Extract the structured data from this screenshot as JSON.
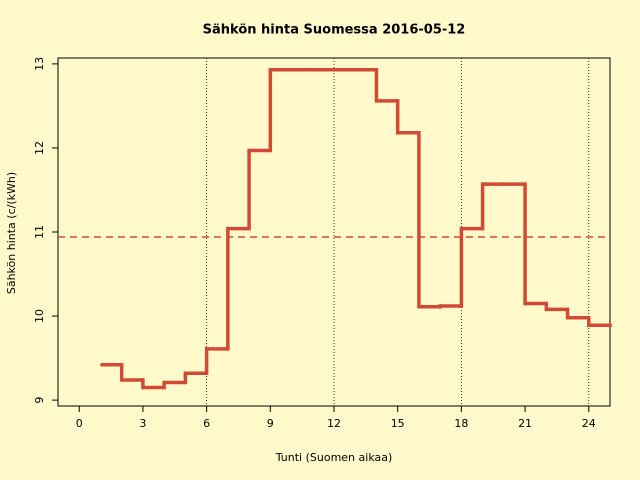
{
  "chart_data": {
    "type": "step",
    "title": "Sähkön hinta Suomessa 2016-05-12",
    "x_label": "Tunti (Suomen aikaa)",
    "y_label": "Sähkön hinta (c/(kWh)",
    "color": "#d24a33",
    "x": [
      1,
      2,
      3,
      4,
      5,
      6,
      7,
      8,
      9,
      10,
      11,
      12,
      13,
      14,
      15,
      16,
      17,
      18,
      19,
      20,
      21,
      22,
      23,
      24,
      25
    ],
    "values": [
      9.42,
      9.24,
      9.15,
      9.21,
      9.32,
      9.61,
      11.04,
      11.97,
      12.93,
      12.93,
      12.93,
      12.93,
      12.93,
      12.56,
      12.18,
      10.11,
      10.12,
      11.04,
      11.57,
      11.57,
      10.15,
      10.08,
      9.98,
      9.89,
      9.89
    ],
    "mean_line": 10.94,
    "vlines": [
      6,
      12,
      18,
      24
    ],
    "xlim": [
      -1,
      25
    ],
    "ylim": [
      8.93,
      13.07
    ],
    "xticks": [
      0,
      3,
      6,
      9,
      12,
      15,
      18,
      21,
      24
    ],
    "yticks": [
      9,
      10,
      11,
      12,
      13
    ]
  }
}
